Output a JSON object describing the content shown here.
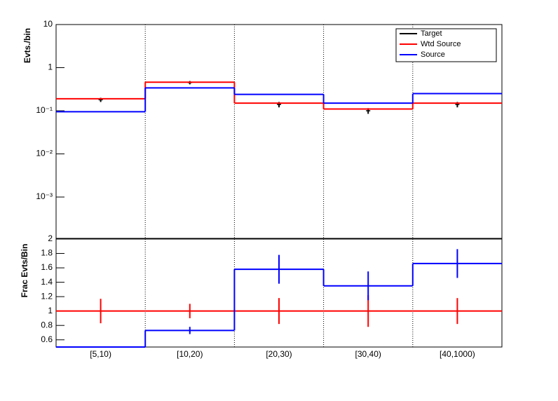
{
  "chart_data": [
    {
      "type": "step",
      "ylabel": "Evts./bin",
      "log_y": true,
      "ylim": [
        0.00011,
        10
      ],
      "yticks": [
        10,
        1,
        {
          "value": 0.1,
          "label": "10⁻¹"
        },
        {
          "value": 0.01,
          "label": "10⁻²"
        },
        {
          "value": 0.001,
          "label": "10⁻³"
        }
      ],
      "grid": "x-dotted",
      "legend": "top-right",
      "series": [
        {
          "name": "Target",
          "color": "#000000",
          "style": "points",
          "values": [
            0.18,
            0.45,
            0.14,
            0.1,
            0.14
          ],
          "errors": [
            0.02,
            0.04,
            0.02,
            0.015,
            0.02
          ]
        },
        {
          "name": "Wtd Source",
          "color": "#ff0000",
          "style": "step",
          "values": [
            0.19,
            0.46,
            0.15,
            0.11,
            0.15
          ]
        },
        {
          "name": "Source",
          "color": "#0000ff",
          "style": "step",
          "values": [
            0.095,
            0.34,
            0.24,
            0.15,
            0.25
          ]
        }
      ]
    },
    {
      "type": "step",
      "ylabel": "Frac Evts/Bin",
      "ylim": [
        0.5,
        2
      ],
      "yticks": [
        0.6,
        0.8,
        1,
        1.2,
        1.4,
        1.6,
        1.8,
        2
      ],
      "grid": "x-dotted",
      "categories": [
        "[5,10)",
        "[10,20)",
        "[20,30)",
        "[30,40)",
        "[40,1000)"
      ],
      "series": [
        {
          "color": "#ff0000",
          "style": "step",
          "values": [
            1,
            1,
            1,
            1,
            1
          ],
          "errors": [
            0.17,
            0.1,
            0.18,
            0.22,
            0.18
          ]
        },
        {
          "color": "#0000ff",
          "style": "step",
          "values": [
            0.5,
            0.73,
            1.58,
            1.35,
            1.66
          ],
          "errors": [
            0,
            0.05,
            0.2,
            0.2,
            0.2
          ]
        }
      ]
    }
  ]
}
